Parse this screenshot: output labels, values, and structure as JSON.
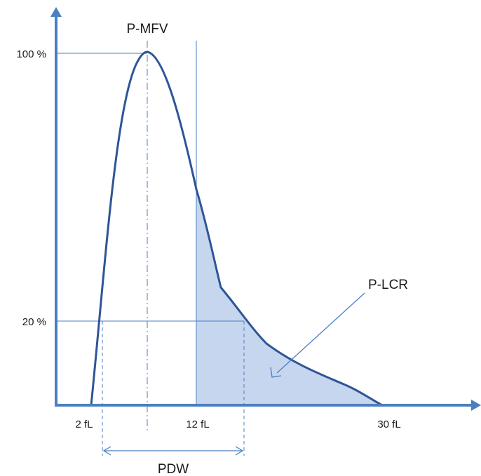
{
  "diagram": {
    "labels": {
      "mode": "P-MFV",
      "large_cell_ratio": "P-LCR",
      "width": "PDW"
    },
    "y_ticks": {
      "top": "100 %",
      "low": "20 %"
    },
    "x_ticks": {
      "start": "2 fL",
      "mid": "12 fL",
      "end": "30 fL"
    },
    "colors": {
      "axis": "#4a7fc1",
      "curve": "#2f5597",
      "guide": "#4a7fc1",
      "fill": "#c6d6ee"
    }
  }
}
